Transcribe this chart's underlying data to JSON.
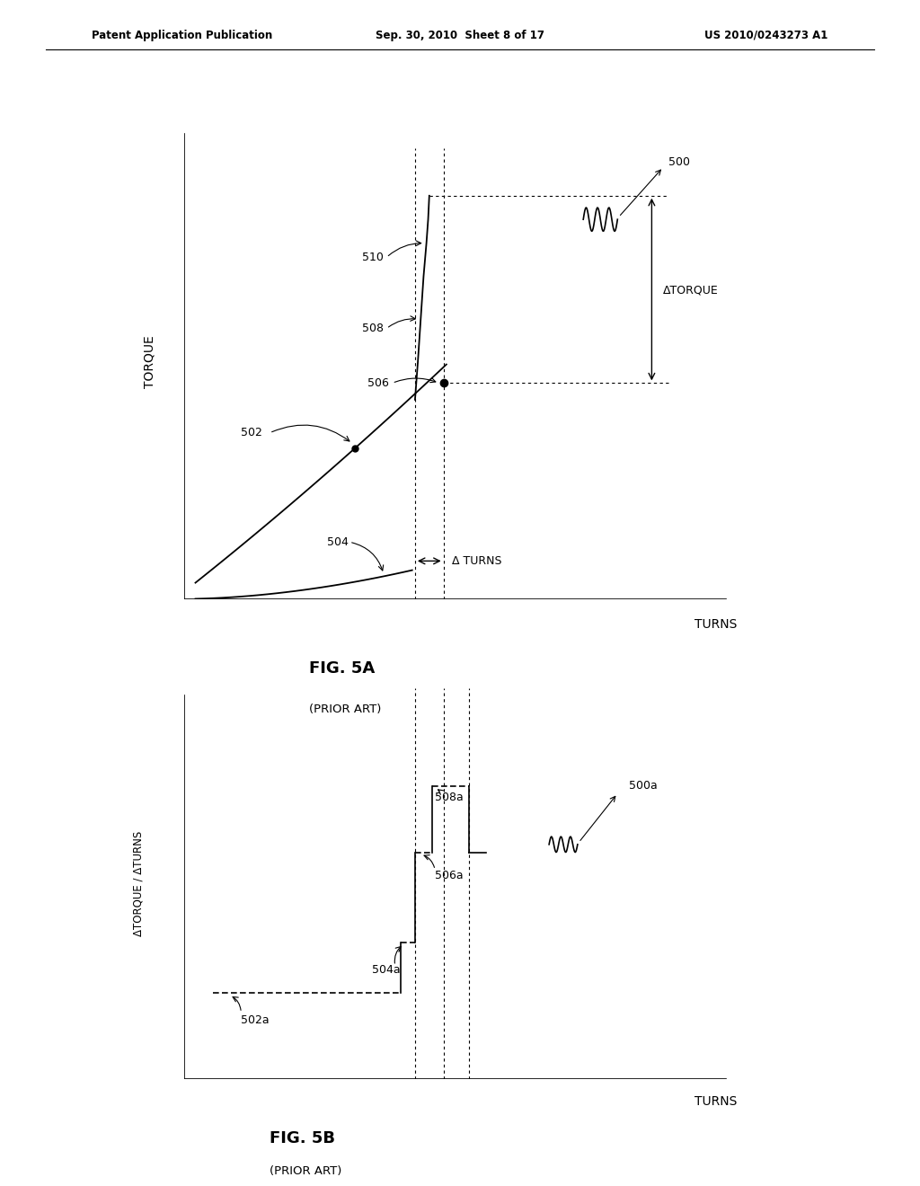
{
  "bg_color": "#ffffff",
  "header_left": "Patent Application Publication",
  "header_mid": "Sep. 30, 2010  Sheet 8 of 17",
  "header_right": "US 2010/0243273 A1",
  "header_fontsize": 8.5,
  "fig5a_title": "FIG. 5A",
  "fig5a_subtitle": "(PRIOR ART)",
  "fig5b_title": "FIG. 5B",
  "fig5b_subtitle": "(PRIOR ART)",
  "label_fontsize": 9,
  "title_fontsize": 13,
  "axis_label_fontsize": 10
}
